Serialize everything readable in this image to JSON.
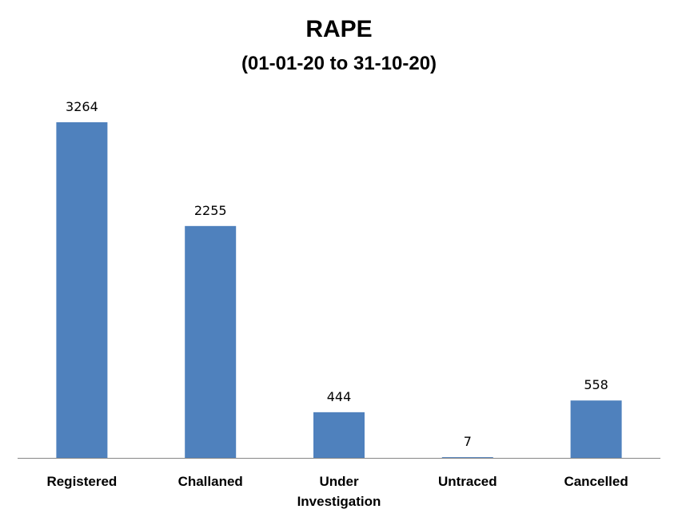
{
  "chart_data": {
    "type": "bar",
    "title": "RAPE",
    "subtitle": "(01-01-20 to 31-10-20)",
    "categories": [
      [
        "Registered"
      ],
      [
        "Challaned"
      ],
      [
        "Under",
        "Investigation"
      ],
      [
        "Untraced"
      ],
      [
        "Cancelled"
      ]
    ],
    "values": [
      3264,
      2255,
      444,
      7,
      558
    ],
    "data_labels": [
      "3264",
      "2255",
      "444",
      "7",
      "558"
    ],
    "bar_color": "#4F81BD",
    "ylim": [
      0,
      3264
    ],
    "grid": false,
    "legend": "none"
  }
}
